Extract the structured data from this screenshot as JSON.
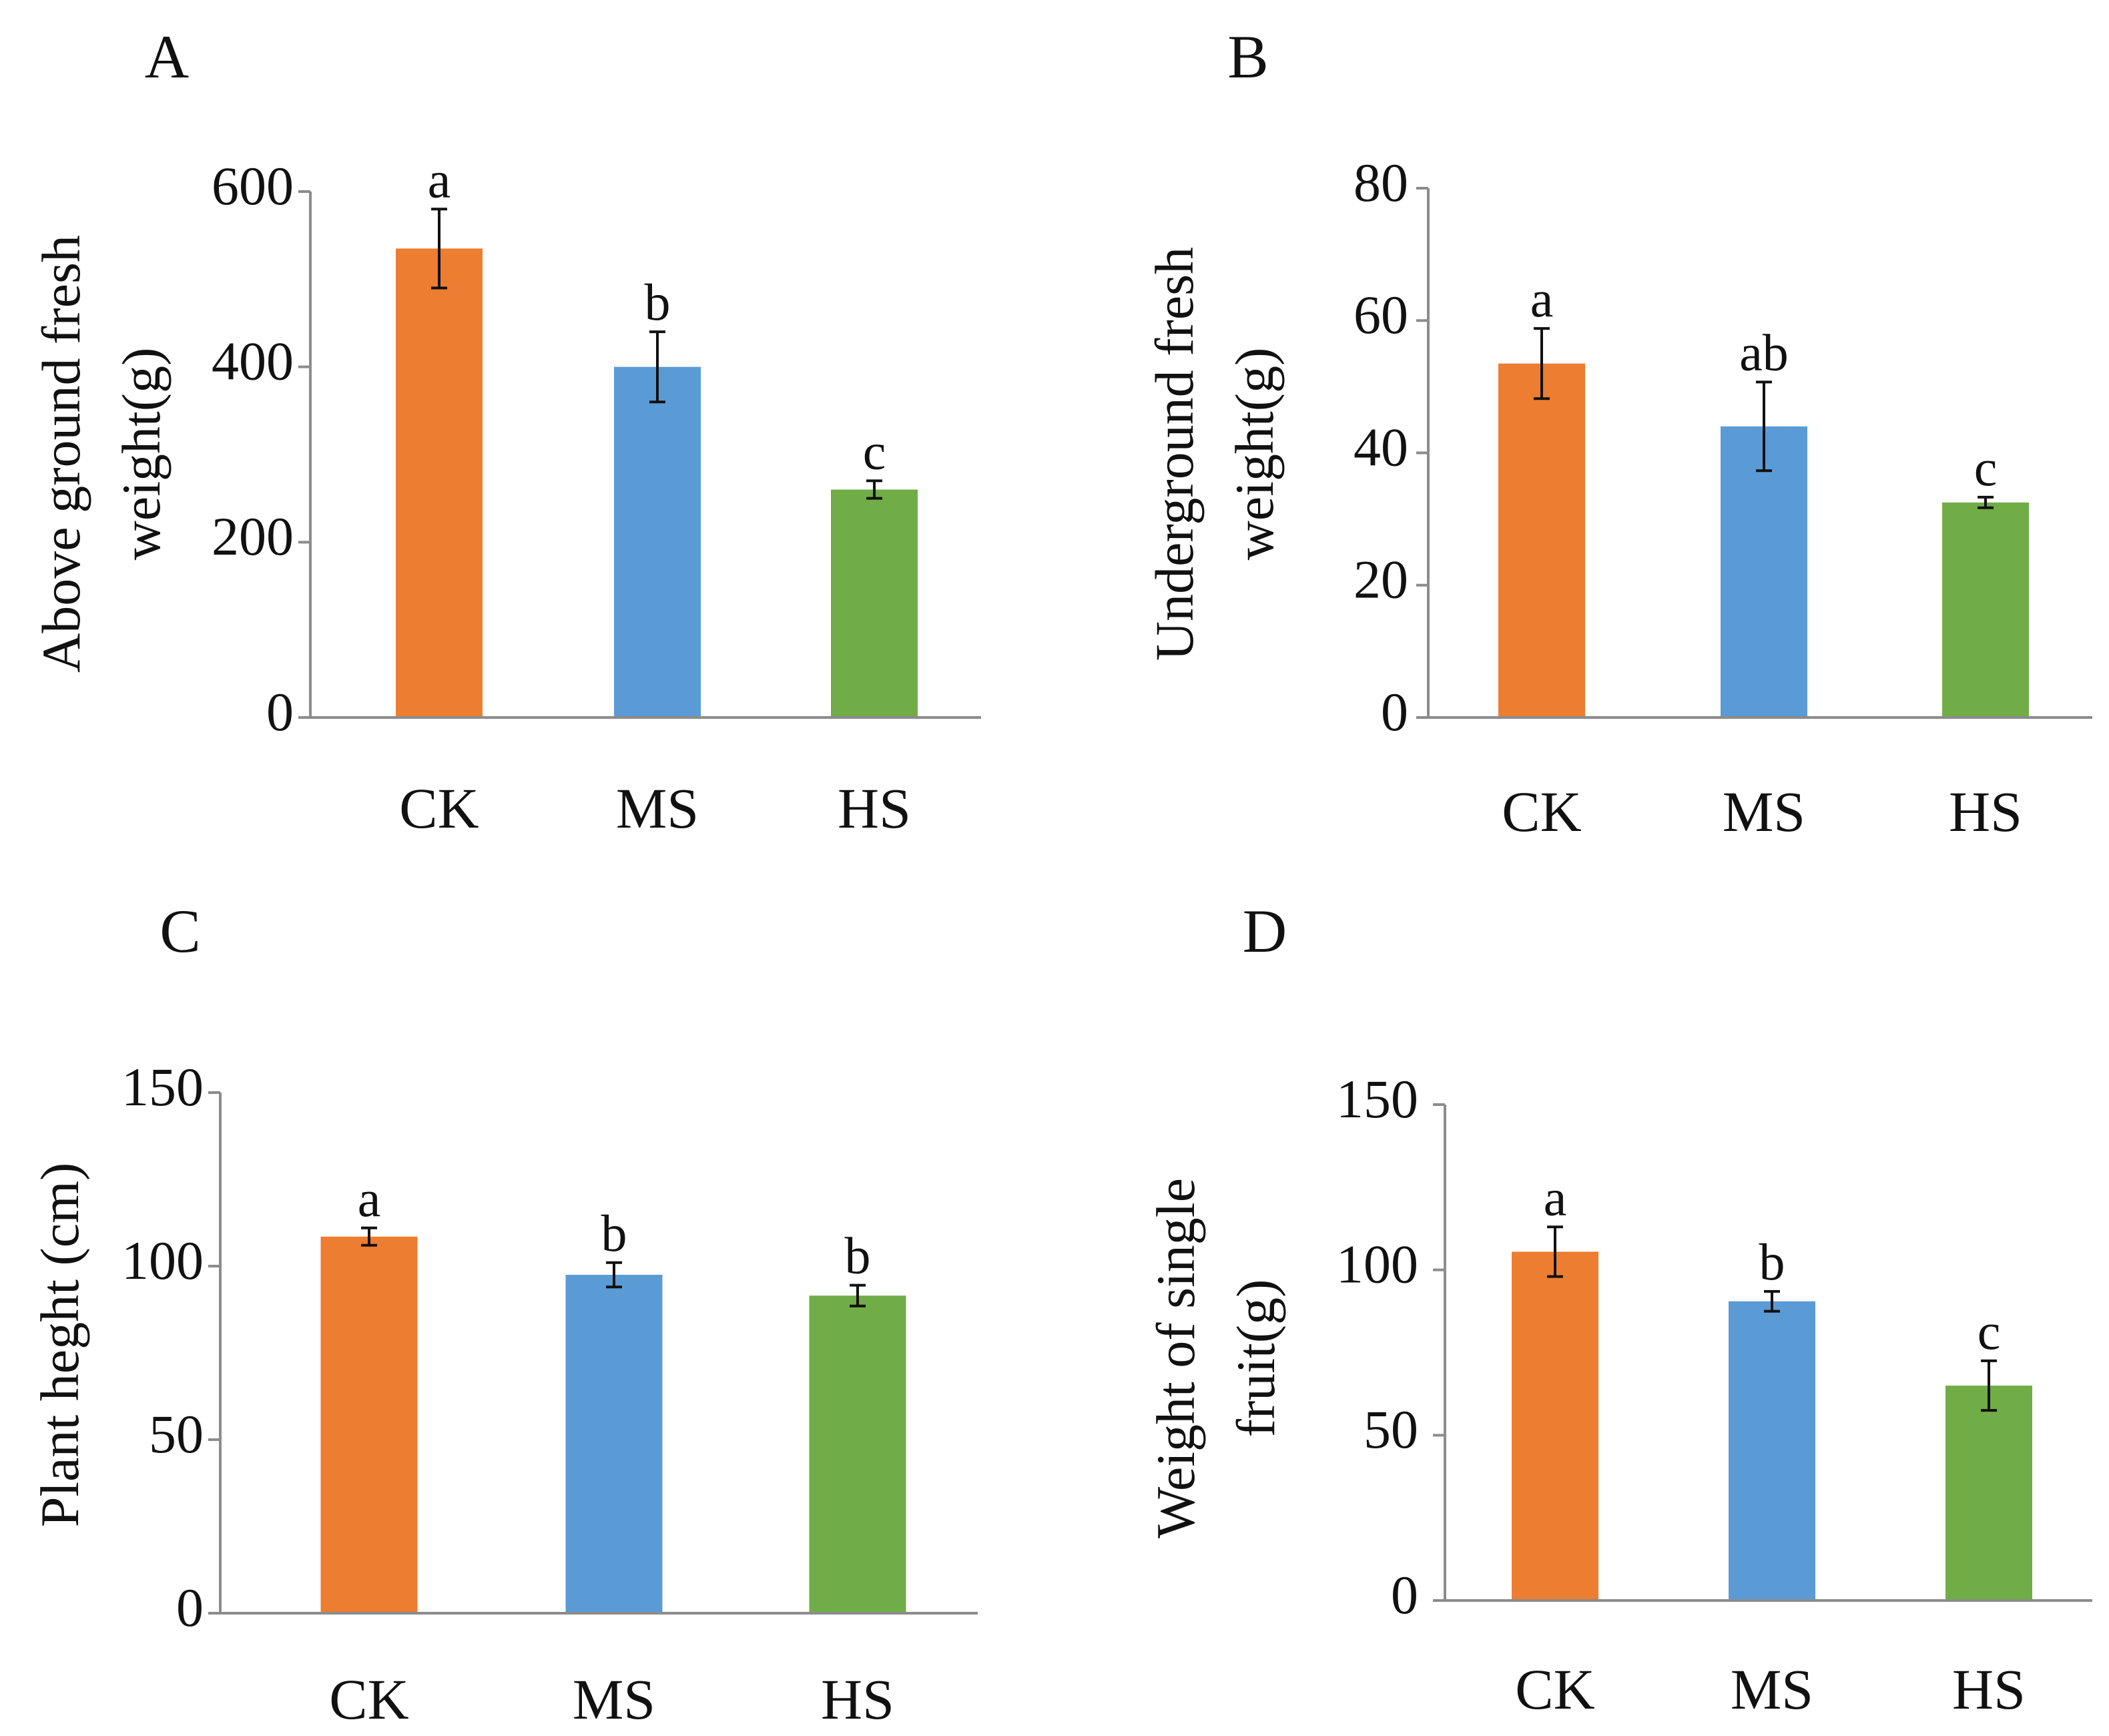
{
  "colors": {
    "CK": "#ED7D31",
    "MS": "#5B9BD5",
    "HS": "#70AD47",
    "axis": "#8C8C8C",
    "text": "#111111"
  },
  "chart_data": [
    {
      "panel": "A",
      "type": "bar",
      "categories": [
        "CK",
        "MS",
        "HS"
      ],
      "values": [
        535,
        400,
        260
      ],
      "errors": [
        45,
        40,
        10
      ],
      "significance": [
        "a",
        "b",
        "c"
      ],
      "ylabel": [
        "Above ground fresh",
        "weight(g)"
      ],
      "yticks": [
        0,
        200,
        400,
        600
      ],
      "ylim": [
        0,
        600
      ],
      "xlabel": "",
      "title": ""
    },
    {
      "panel": "B",
      "type": "bar",
      "categories": [
        "CK",
        "MS",
        "HS"
      ],
      "values": [
        53.5,
        44,
        32.5
      ],
      "errors": [
        5.3,
        6.7,
        0.8
      ],
      "significance": [
        "a",
        "ab",
        "c"
      ],
      "ylabel": [
        "Underground fresh",
        "weight(g)"
      ],
      "yticks": [
        0,
        20,
        40,
        60,
        80
      ],
      "ylim": [
        0,
        80
      ],
      "xlabel": "",
      "title": ""
    },
    {
      "panel": "C",
      "type": "bar",
      "categories": [
        "CK",
        "MS",
        "HS"
      ],
      "values": [
        108.5,
        97.5,
        91.5
      ],
      "errors": [
        2.5,
        3.5,
        3
      ],
      "significance": [
        "a",
        "b",
        "b"
      ],
      "ylabel": [
        "Plant heght (cm)"
      ],
      "yticks": [
        0,
        50,
        100,
        150
      ],
      "ylim": [
        0,
        150
      ],
      "xlabel": "",
      "title": ""
    },
    {
      "panel": "D",
      "type": "bar",
      "categories": [
        "CK",
        "MS",
        "HS"
      ],
      "values": [
        105.5,
        90.5,
        65
      ],
      "errors": [
        7.5,
        3,
        7.5
      ],
      "significance": [
        "a",
        "b",
        "c"
      ],
      "ylabel": [
        "Weight of single",
        "fruit(g)"
      ],
      "yticks": [
        0,
        50,
        100,
        150
      ],
      "ylim": [
        0,
        150
      ],
      "xlabel": "",
      "title": ""
    }
  ]
}
